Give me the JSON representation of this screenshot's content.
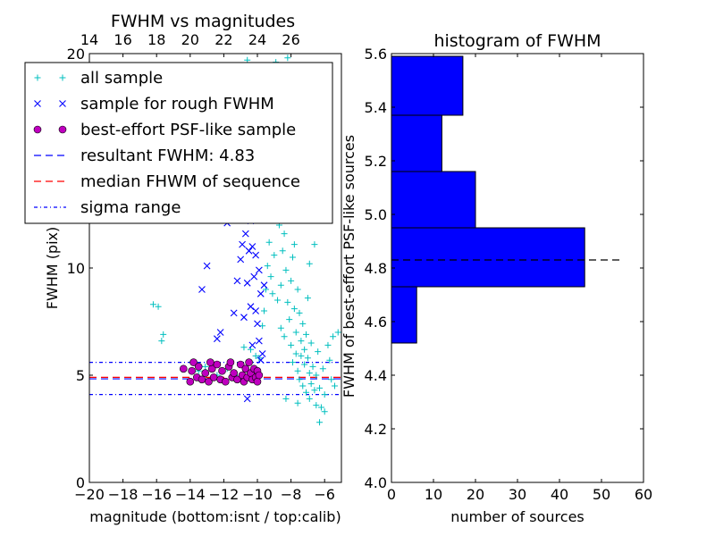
{
  "chart_data": [
    {
      "type": "scatter",
      "title": "FWHM vs magnitudes",
      "xlabel": "magnitude (bottom:isnt / top:calib)",
      "ylabel": "FWHM (pix)",
      "xlim": [
        -20,
        -5
      ],
      "ylim": [
        0,
        20
      ],
      "xticks": [
        "−20",
        "−18",
        "−16",
        "−14",
        "−12",
        "−10",
        "−8",
        "−6"
      ],
      "yticks": [
        "0",
        "5",
        "10",
        "15",
        "20"
      ],
      "top_xticks": [
        "14",
        "16",
        "18",
        "20",
        "22",
        "24",
        "26"
      ],
      "top_offset": 34,
      "legend": {
        "placement": "upper-left",
        "entries": [
          {
            "label": "all sample",
            "marker": "plus",
            "color": "#00bfbf"
          },
          {
            "label": "sample for rough FWHM",
            "marker": "x",
            "color": "#0000ff"
          },
          {
            "label": "best-effort PSF-like sample",
            "marker": "circle",
            "color": "#bf00bf"
          },
          {
            "label": "resultant FWHM: 4.83",
            "marker": "dashed",
            "color": "#0000ff"
          },
          {
            "label": "median FHWM of sequence",
            "marker": "dashed",
            "color": "#ff0000"
          },
          {
            "label": "sigma range",
            "marker": "dashdot",
            "color": "#0000ff"
          }
        ]
      },
      "hlines": [
        {
          "y": 4.83,
          "style": "dashed",
          "color": "#0000ff"
        },
        {
          "y": 4.9,
          "style": "dashed",
          "color": "#ff0000"
        },
        {
          "y": 5.6,
          "style": "dashdot",
          "color": "#0000ff"
        },
        {
          "y": 4.1,
          "style": "dashdot",
          "color": "#0000ff"
        }
      ],
      "series": [
        {
          "name": "all sample",
          "marker": "plus",
          "color": "#00bfbf",
          "points": [
            [
              -16.2,
              8.3
            ],
            [
              -15.9,
              8.2
            ],
            [
              -15.7,
              6.6
            ],
            [
              -15.6,
              6.9
            ],
            [
              -13.5,
              5.2
            ],
            [
              -13.1,
              5.4
            ],
            [
              -12.4,
              5.0
            ],
            [
              -11.8,
              5.3
            ],
            [
              -11.2,
              4.9
            ],
            [
              -10.6,
              19.7
            ],
            [
              -10.8,
              6.3
            ],
            [
              -10.4,
              6.2
            ],
            [
              -10.1,
              5.9
            ],
            [
              -9.9,
              5.8
            ],
            [
              -9.7,
              7.3
            ],
            [
              -9.6,
              8.0
            ],
            [
              -9.5,
              9.0
            ],
            [
              -9.4,
              10.1
            ],
            [
              -9.3,
              11.2
            ],
            [
              -9.2,
              9.6
            ],
            [
              -9.1,
              8.8
            ],
            [
              -9.0,
              10.6
            ],
            [
              -8.9,
              13.1
            ],
            [
              -8.8,
              14.0
            ],
            [
              -8.8,
              8.5
            ],
            [
              -8.7,
              12.0
            ],
            [
              -8.6,
              9.2
            ],
            [
              -8.6,
              7.2
            ],
            [
              -8.5,
              15.2
            ],
            [
              -8.5,
              10.8
            ],
            [
              -8.4,
              11.6
            ],
            [
              -8.4,
              6.8
            ],
            [
              -8.3,
              16.0
            ],
            [
              -8.3,
              9.9
            ],
            [
              -8.2,
              8.4
            ],
            [
              -8.2,
              13.6
            ],
            [
              -8.1,
              7.6
            ],
            [
              -8.1,
              12.3
            ],
            [
              -8.0,
              9.4
            ],
            [
              -8.0,
              6.4
            ],
            [
              -7.9,
              10.5
            ],
            [
              -7.9,
              5.6
            ],
            [
              -7.8,
              8.1
            ],
            [
              -7.8,
              11.1
            ],
            [
              -7.7,
              7.0
            ],
            [
              -7.7,
              6.0
            ],
            [
              -7.6,
              9.0
            ],
            [
              -7.6,
              5.2
            ],
            [
              -7.5,
              7.9
            ],
            [
              -7.5,
              4.8
            ],
            [
              -7.4,
              6.6
            ],
            [
              -7.4,
              5.9
            ],
            [
              -7.3,
              7.4
            ],
            [
              -7.3,
              4.5
            ],
            [
              -7.2,
              6.2
            ],
            [
              -7.2,
              5.5
            ],
            [
              -7.1,
              6.9
            ],
            [
              -7.1,
              4.2
            ],
            [
              -7.0,
              5.8
            ],
            [
              -7.0,
              8.6
            ],
            [
              -6.9,
              5.1
            ],
            [
              -6.9,
              3.9
            ],
            [
              -6.8,
              6.5
            ],
            [
              -6.8,
              4.6
            ],
            [
              -6.7,
              5.4
            ],
            [
              -6.6,
              4.3
            ],
            [
              -6.5,
              5.0
            ],
            [
              -6.5,
              3.6
            ],
            [
              -6.4,
              6.1
            ],
            [
              -6.3,
              4.4
            ],
            [
              -6.2,
              3.5
            ],
            [
              -6.1,
              5.3
            ],
            [
              -6.0,
              4.1
            ],
            [
              -5.8,
              6.4
            ],
            [
              -5.7,
              5.7
            ],
            [
              -5.6,
              4.8
            ],
            [
              -5.5,
              6.8
            ],
            [
              -5.4,
              4.5
            ],
            [
              -8.9,
              19.6
            ],
            [
              -8.2,
              19.8
            ],
            [
              -7.5,
              18.6
            ],
            [
              -7.0,
              17.4
            ],
            [
              -6.6,
              11.1
            ],
            [
              -6.8,
              12.5
            ],
            [
              -9.6,
              12.8
            ],
            [
              -9.2,
              14.5
            ],
            [
              -8.0,
              17.9
            ],
            [
              -7.2,
              15.5
            ],
            [
              -6.9,
              10.2
            ],
            [
              -6.3,
              2.8
            ],
            [
              -6.0,
              3.3
            ],
            [
              -7.6,
              3.7
            ],
            [
              -8.3,
              3.9
            ],
            [
              -5.2,
              7.0
            ]
          ]
        },
        {
          "name": "sample for rough FWHM",
          "marker": "x",
          "color": "#0000ff",
          "points": [
            [
              -13.3,
              9.0
            ],
            [
              -13.0,
              10.1
            ],
            [
              -12.4,
              6.7
            ],
            [
              -12.2,
              7.0
            ],
            [
              -11.8,
              12.1
            ],
            [
              -11.6,
              12.3
            ],
            [
              -11.2,
              9.4
            ],
            [
              -11.0,
              10.4
            ],
            [
              -10.9,
              11.1
            ],
            [
              -10.8,
              7.7
            ],
            [
              -10.7,
              11.6
            ],
            [
              -10.6,
              13.1
            ],
            [
              -10.6,
              9.3
            ],
            [
              -10.5,
              10.8
            ],
            [
              -10.4,
              12.2
            ],
            [
              -10.4,
              8.2
            ],
            [
              -10.3,
              11.0
            ],
            [
              -10.3,
              6.4
            ],
            [
              -10.2,
              13.3
            ],
            [
              -10.2,
              9.6
            ],
            [
              -10.1,
              10.6
            ],
            [
              -10.1,
              8.0
            ],
            [
              -10.0,
              12.7
            ],
            [
              -10.0,
              7.4
            ],
            [
              -9.9,
              9.9
            ],
            [
              -9.9,
              6.6
            ],
            [
              -9.8,
              8.8
            ],
            [
              -9.8,
              5.7
            ],
            [
              -10.6,
              3.9
            ],
            [
              -11.4,
              7.9
            ],
            [
              -9.7,
              6.0
            ],
            [
              -9.6,
              9.2
            ]
          ]
        },
        {
          "name": "best-effort PSF-like sample",
          "marker": "circle",
          "color": "#bf00bf",
          "points": [
            [
              -14.4,
              5.3
            ],
            [
              -14.0,
              4.7
            ],
            [
              -13.8,
              5.6
            ],
            [
              -13.6,
              4.9
            ],
            [
              -13.5,
              5.4
            ],
            [
              -13.3,
              4.8
            ],
            [
              -13.1,
              5.1
            ],
            [
              -12.9,
              4.7
            ],
            [
              -12.7,
              5.3
            ],
            [
              -12.6,
              4.9
            ],
            [
              -12.4,
              5.5
            ],
            [
              -12.2,
              4.8
            ],
            [
              -12.1,
              5.2
            ],
            [
              -11.9,
              4.7
            ],
            [
              -11.7,
              5.4
            ],
            [
              -11.5,
              4.9
            ],
            [
              -11.4,
              5.1
            ],
            [
              -11.2,
              4.8
            ],
            [
              -11.0,
              5.5
            ],
            [
              -10.9,
              5.0
            ],
            [
              -10.8,
              4.7
            ],
            [
              -10.7,
              5.3
            ],
            [
              -10.6,
              4.9
            ],
            [
              -10.5,
              5.6
            ],
            [
              -10.4,
              5.1
            ],
            [
              -10.3,
              4.8
            ],
            [
              -10.2,
              5.3
            ],
            [
              -10.1,
              4.9
            ],
            [
              -10.0,
              5.2
            ],
            [
              -10.0,
              4.7
            ],
            [
              -9.9,
              5.0
            ],
            [
              -12.8,
              5.6
            ],
            [
              -13.9,
              5.2
            ],
            [
              -11.6,
              5.6
            ]
          ]
        }
      ]
    },
    {
      "type": "bar",
      "orientation": "horizontal",
      "title": "histogram of FWHM",
      "xlabel": "number of sources",
      "ylabel": "FWHM of best-effort PSF-like sources",
      "xlim": [
        0,
        60
      ],
      "ylim": [
        4.0,
        5.6
      ],
      "xticks": [
        "0",
        "10",
        "20",
        "30",
        "40",
        "50",
        "60"
      ],
      "yticks": [
        "4.0",
        "4.2",
        "4.4",
        "4.6",
        "4.8",
        "5.0",
        "5.2",
        "5.4",
        "5.6"
      ],
      "bins": [
        {
          "lo": 4.52,
          "hi": 4.73,
          "count": 6
        },
        {
          "lo": 4.73,
          "hi": 4.95,
          "count": 46
        },
        {
          "lo": 4.95,
          "hi": 5.16,
          "count": 20
        },
        {
          "lo": 5.16,
          "hi": 5.37,
          "count": 12
        },
        {
          "lo": 5.37,
          "hi": 5.59,
          "count": 17
        }
      ],
      "bar_color": "#0000ff",
      "hline": {
        "y": 4.83,
        "style": "dashed",
        "color": "#000000",
        "x_range": [
          0,
          55
        ]
      }
    }
  ]
}
